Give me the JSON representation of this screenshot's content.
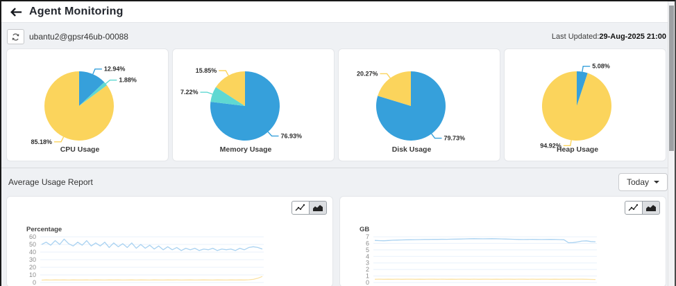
{
  "header": {
    "title": "Agent Monitoring"
  },
  "toolbar": {
    "agent_id": "ubantu2@gpsr46ub-00088",
    "last_updated_label": "Last Updated:",
    "last_updated_value": "29-Aug-2025 21:00"
  },
  "report": {
    "title": "Average Usage Report",
    "range_selector": "Today"
  },
  "icons": {
    "back": "arrow-left",
    "refresh": "refresh",
    "line_chart": "line-chart",
    "area_chart": "area-chart",
    "caret": "caret-down"
  },
  "colors": {
    "blue": "#36a0db",
    "cyan": "#5fd8d2",
    "yellow": "#fbd45c",
    "line_blue": "#a9d2f1",
    "line_yellow": "#fbe2a3",
    "grid": "#e8f1fb"
  },
  "chart_data": [
    {
      "type": "pie",
      "title": "CPU Usage",
      "slices": [
        {
          "label": "12.94%",
          "value": 12.94,
          "color_key": "blue"
        },
        {
          "label": "1.88%",
          "value": 1.88,
          "color_key": "cyan"
        },
        {
          "label": "85.18%",
          "value": 85.18,
          "color_key": "yellow"
        }
      ]
    },
    {
      "type": "pie",
      "title": "Memory Usage",
      "slices": [
        {
          "label": "76.93%",
          "value": 76.93,
          "color_key": "blue"
        },
        {
          "label": "7.22%",
          "value": 7.22,
          "color_key": "cyan"
        },
        {
          "label": "15.85%",
          "value": 15.85,
          "color_key": "yellow"
        }
      ]
    },
    {
      "type": "pie",
      "title": "Disk Usage",
      "slices": [
        {
          "label": "79.73%",
          "value": 79.73,
          "color_key": "blue"
        },
        {
          "label": "20.27%",
          "value": 20.27,
          "color_key": "yellow"
        }
      ]
    },
    {
      "type": "pie",
      "title": "Heap Usage",
      "slices": [
        {
          "label": "5.08%",
          "value": 5.08,
          "color_key": "blue"
        },
        {
          "label": "94.92%",
          "value": 94.92,
          "color_key": "yellow"
        }
      ]
    },
    {
      "type": "line",
      "ylabel": "Percentage",
      "yticks": [
        0,
        10,
        20,
        30,
        40,
        50,
        60
      ],
      "ylim": [
        0,
        60
      ],
      "grid": true,
      "series": [
        {
          "name": "blue_series",
          "color_key": "line_blue",
          "values": [
            50,
            53,
            49,
            55,
            50,
            57,
            51,
            48,
            53,
            49,
            55,
            48,
            52,
            48,
            53,
            46,
            52,
            47,
            51,
            46,
            52,
            45,
            50,
            45,
            49,
            44,
            48,
            43,
            47,
            43,
            46,
            42,
            45,
            43,
            45,
            42,
            44,
            43,
            45,
            42,
            44,
            43,
            44,
            42,
            45,
            43,
            46,
            47,
            46,
            44
          ]
        },
        {
          "name": "yellow_series",
          "color_key": "line_yellow",
          "values": [
            3.2,
            3.5,
            3.3,
            3.5,
            3.4,
            3.5,
            3.3,
            3.5,
            3.4,
            3.4,
            3.5,
            3.3,
            3.5,
            3.4,
            3.3,
            3.5,
            3.4,
            3.5,
            3.3,
            3.4,
            3.5,
            3.3,
            3.5,
            3.4,
            3.3,
            3.5,
            3.4,
            3.3,
            3.5,
            3.4,
            3.5,
            3.3,
            3.4,
            3.5,
            3.3,
            3.4,
            3.5,
            3.4,
            3.3,
            3.5,
            3.4,
            3.3,
            3.5,
            3.4,
            3.5,
            3.4,
            3.6,
            4.2,
            5.6,
            8.0
          ]
        }
      ]
    },
    {
      "type": "line",
      "ylabel": "GB",
      "yticks": [
        0,
        1,
        2,
        3,
        4,
        5,
        6,
        7
      ],
      "ylim": [
        0,
        7
      ],
      "grid": true,
      "series": [
        {
          "name": "blue_series",
          "color_key": "line_blue",
          "values": [
            6.45,
            6.42,
            6.4,
            6.44,
            6.48,
            6.5,
            6.52,
            6.54,
            6.55,
            6.57,
            6.58,
            6.6,
            6.6,
            6.62,
            6.61,
            6.63,
            6.62,
            6.64,
            6.65,
            6.66,
            6.68,
            6.7,
            6.71,
            6.7,
            6.69,
            6.7,
            6.71,
            6.7,
            6.68,
            6.66,
            6.64,
            6.62,
            6.6,
            6.59,
            6.6,
            6.61,
            6.6,
            6.59,
            6.6,
            6.61,
            6.6,
            6.58,
            6.55,
            6.1,
            6.12,
            6.22,
            6.35,
            6.38,
            6.28,
            6.25
          ]
        },
        {
          "name": "yellow_series",
          "color_key": "line_yellow",
          "values": [
            0.5,
            0.52,
            0.5,
            0.51,
            0.5,
            0.52,
            0.5,
            0.51,
            0.52,
            0.5,
            0.51,
            0.5,
            0.52,
            0.51,
            0.5,
            0.52,
            0.5,
            0.51,
            0.5,
            0.52,
            0.51,
            0.5,
            0.52,
            0.5,
            0.51,
            0.52,
            0.5,
            0.51,
            0.5,
            0.52,
            0.51,
            0.5,
            0.52,
            0.51,
            0.5,
            0.52,
            0.5,
            0.51,
            0.52,
            0.5,
            0.51,
            0.5,
            0.52,
            0.51,
            0.5,
            0.52,
            0.51,
            0.5,
            0.48,
            0.47
          ]
        }
      ]
    }
  ]
}
